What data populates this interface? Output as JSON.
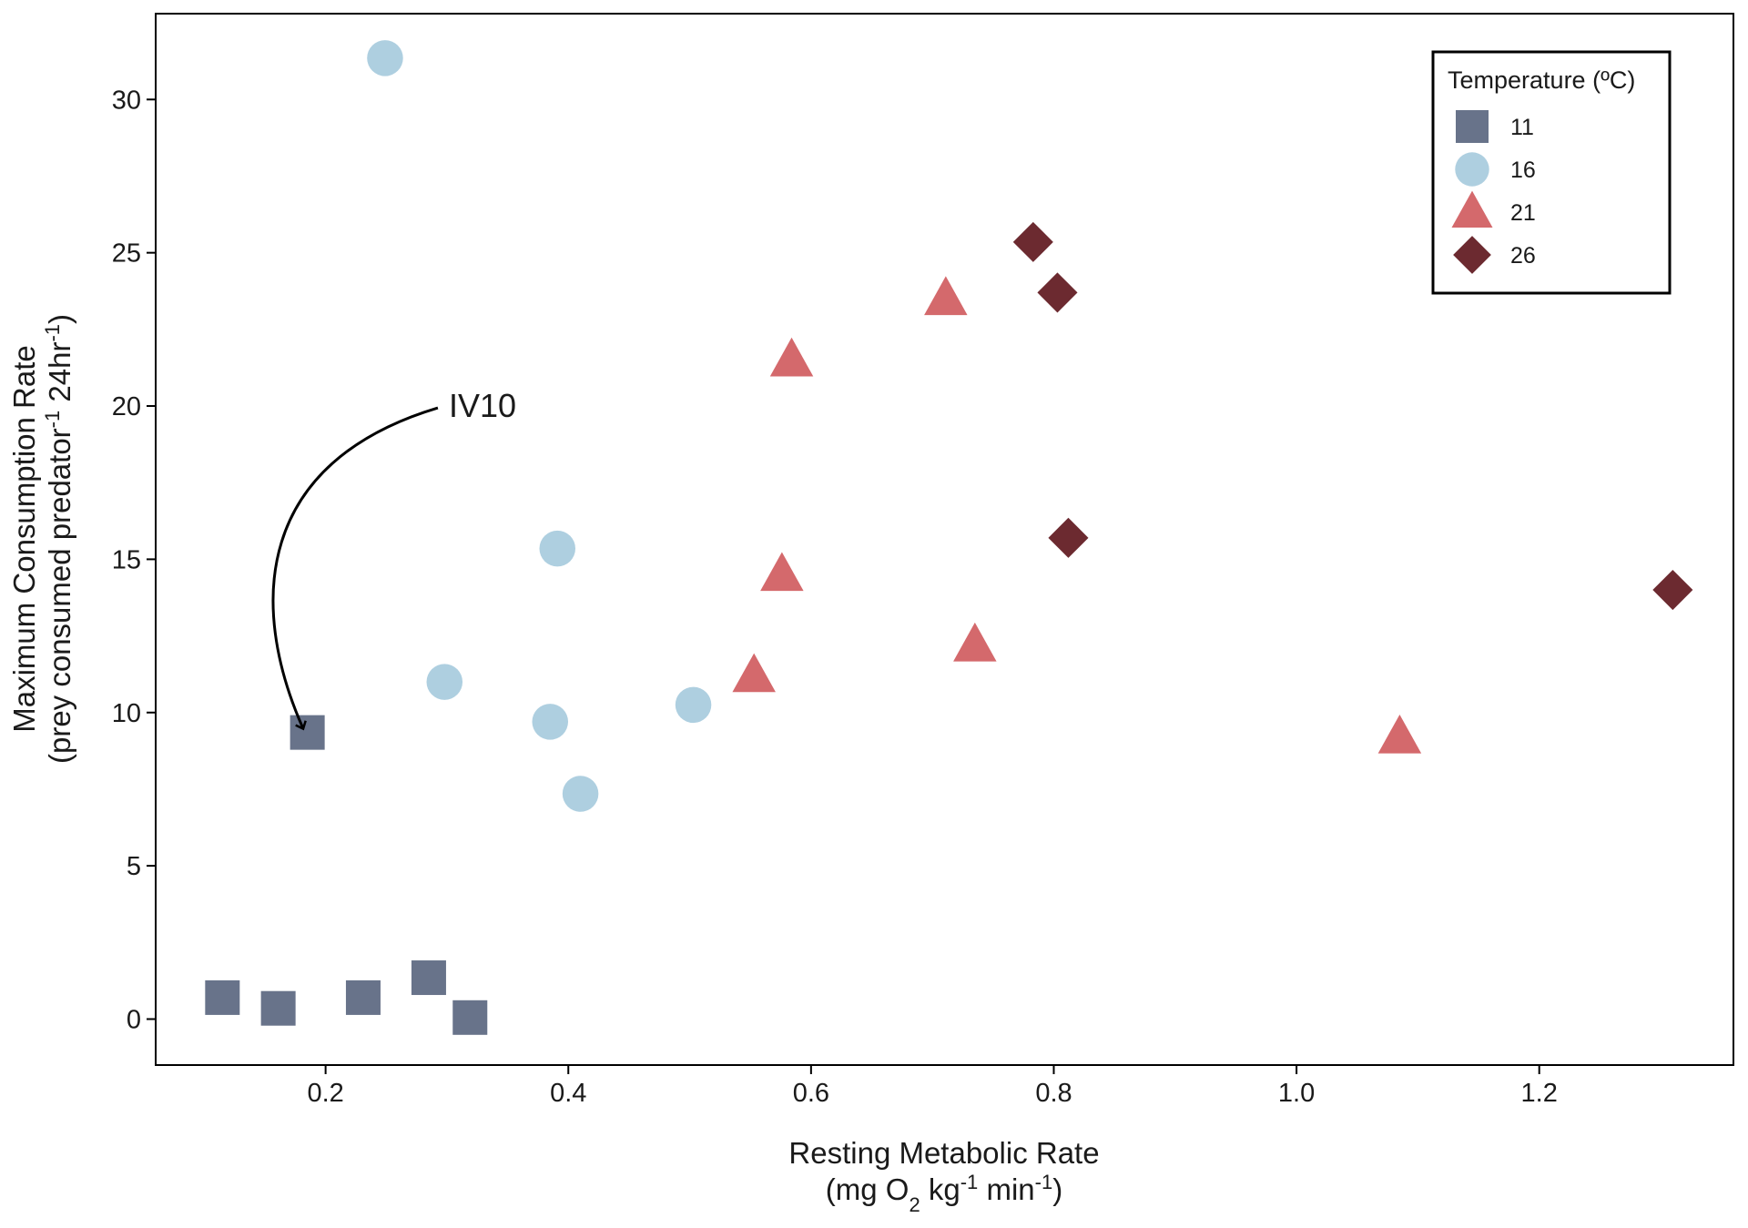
{
  "chart_data": {
    "type": "scatter",
    "xlabel": {
      "line1": "Resting Metabolic Rate",
      "line2_parts": [
        {
          "text": "(mg O",
          "style": "normal"
        },
        {
          "text": "2",
          "style": "sub"
        },
        {
          "text": " kg",
          "style": "normal"
        },
        {
          "text": "-1",
          "style": "sup"
        },
        {
          "text": " min",
          "style": "normal"
        },
        {
          "text": "-1",
          "style": "sup"
        },
        {
          "text": ")",
          "style": "normal"
        }
      ]
    },
    "ylabel": {
      "line1": "Maximum Consumption Rate",
      "line2_parts": [
        {
          "text": "(prey consumed predator",
          "style": "normal"
        },
        {
          "text": "-1",
          "style": "sup"
        },
        {
          "text": " 24hr",
          "style": "normal"
        },
        {
          "text": "-1",
          "style": "sup"
        },
        {
          "text": ")",
          "style": "normal"
        }
      ]
    },
    "xlim": [
      0.06,
      1.36
    ],
    "ylim": [
      -1.5,
      32.8
    ],
    "xticks": [
      0.2,
      0.4,
      0.6,
      0.8,
      1.0,
      1.2
    ],
    "xtick_labels": [
      "0.2",
      "0.4",
      "0.6",
      "0.8",
      "1.0",
      "1.2"
    ],
    "yticks": [
      0,
      5,
      10,
      15,
      20,
      25,
      30
    ],
    "ytick_labels": [
      "0",
      "5",
      "10",
      "15",
      "20",
      "25",
      "30"
    ],
    "grid": false,
    "legend": {
      "title": "Temperature (ºC)",
      "placement": "top-right"
    },
    "series": [
      {
        "name": "11",
        "shape": "square",
        "color": "#68738a",
        "points": [
          {
            "x": 0.115,
            "y": 0.7
          },
          {
            "x": 0.161,
            "y": 0.35
          },
          {
            "x": 0.185,
            "y": 9.35
          },
          {
            "x": 0.231,
            "y": 0.7
          },
          {
            "x": 0.285,
            "y": 1.35
          },
          {
            "x": 0.319,
            "y": 0.05
          }
        ]
      },
      {
        "name": "16",
        "shape": "circle",
        "color": "#aecfe0",
        "points": [
          {
            "x": 0.249,
            "y": 31.35
          },
          {
            "x": 0.391,
            "y": 15.35
          },
          {
            "x": 0.298,
            "y": 11.0
          },
          {
            "x": 0.385,
            "y": 9.7
          },
          {
            "x": 0.503,
            "y": 10.25
          },
          {
            "x": 0.41,
            "y": 7.35
          }
        ]
      },
      {
        "name": "21",
        "shape": "triangle",
        "color": "#d4696c",
        "points": [
          {
            "x": 0.711,
            "y": 23.5
          },
          {
            "x": 0.584,
            "y": 21.5
          },
          {
            "x": 0.576,
            "y": 14.5
          },
          {
            "x": 0.553,
            "y": 11.2
          },
          {
            "x": 0.735,
            "y": 12.2
          },
          {
            "x": 1.085,
            "y": 9.2
          }
        ]
      },
      {
        "name": "26",
        "shape": "diamond",
        "color": "#6c2a30",
        "points": [
          {
            "x": 0.783,
            "y": 25.35
          },
          {
            "x": 0.803,
            "y": 23.7
          },
          {
            "x": 0.812,
            "y": 15.7
          },
          {
            "x": 1.31,
            "y": 14.0
          }
        ]
      }
    ],
    "annotations": [
      {
        "text": "IV10",
        "text_x": 0.3,
        "text_y": 20.0,
        "target_x": 0.185,
        "target_y": 9.35
      }
    ]
  }
}
